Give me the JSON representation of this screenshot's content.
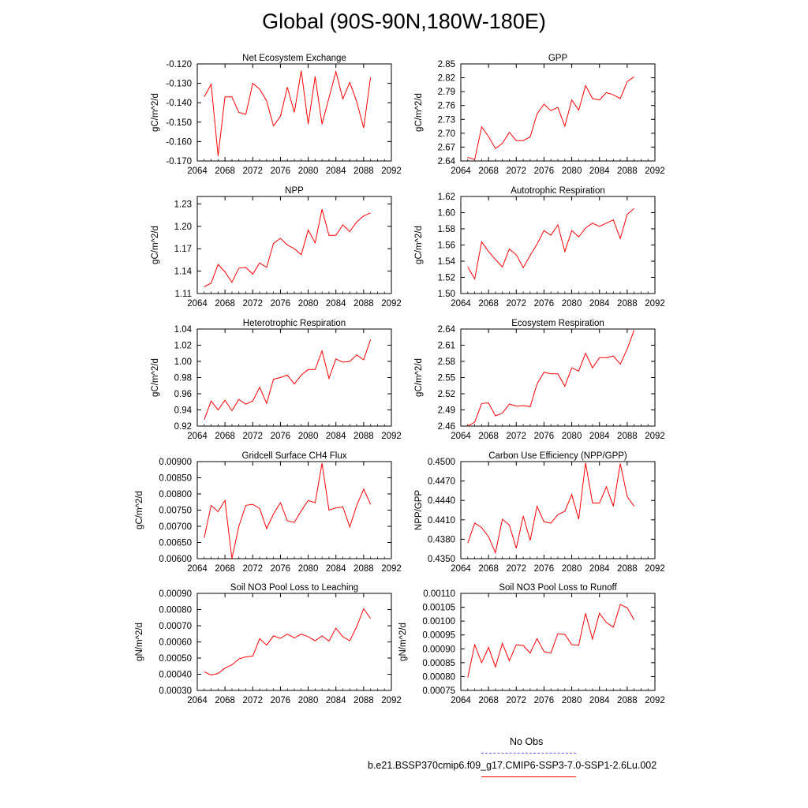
{
  "page": {
    "title": "Global (90S-90N,180W-180E)"
  },
  "legend": {
    "entries": [
      {
        "label": "No Obs",
        "color": "#5a5aff",
        "style": "dashed"
      },
      {
        "label": "b.e21.BSSP370cmip6.f09_g17.CMIP6-SSP3-7.0-SSP1-2.6Lu.002",
        "color": "#ff0000",
        "style": "solid"
      }
    ]
  },
  "chart_data": [
    {
      "type": "line",
      "title": "Net Ecosystem Exchange",
      "ylabel": "gC/m^2/d",
      "xlabel": "",
      "xlim": [
        2064,
        2092
      ],
      "xticks": [
        2064,
        2068,
        2072,
        2076,
        2080,
        2084,
        2088,
        2092
      ],
      "ylim": [
        -0.17,
        -0.12
      ],
      "yticks": [
        "-0.120",
        "-0.130",
        "-0.140",
        "-0.150",
        "-0.160",
        "-0.170"
      ],
      "series": [
        {
          "color": "#ff0000",
          "x": [
            2065,
            2066,
            2067,
            2068,
            2069,
            2070,
            2071,
            2072,
            2073,
            2074,
            2075,
            2076,
            2077,
            2078,
            2079,
            2080,
            2081,
            2082,
            2083,
            2084,
            2085,
            2086,
            2087,
            2088,
            2089
          ],
          "y": [
            -0.137,
            -0.1305,
            -0.1675,
            -0.137,
            -0.137,
            -0.145,
            -0.146,
            -0.13,
            -0.133,
            -0.139,
            -0.152,
            -0.147,
            -0.132,
            -0.145,
            -0.1235,
            -0.151,
            -0.1265,
            -0.151,
            -0.1375,
            -0.124,
            -0.138,
            -0.1295,
            -0.1395,
            -0.153,
            -0.127
          ]
        }
      ]
    },
    {
      "type": "line",
      "title": "GPP",
      "ylabel": "gC/m^2/d",
      "xlabel": "",
      "xlim": [
        2064,
        2092
      ],
      "xticks": [
        2064,
        2068,
        2072,
        2076,
        2080,
        2084,
        2088,
        2092
      ],
      "ylim": [
        2.64,
        2.85
      ],
      "yticks": [
        "2.85",
        "2.82",
        "2.79",
        "2.76",
        "2.73",
        "2.70",
        "2.67",
        "2.64"
      ],
      "series": [
        {
          "color": "#ff0000",
          "x": [
            2065,
            2066,
            2067,
            2068,
            2069,
            2070,
            2071,
            2072,
            2073,
            2074,
            2075,
            2076,
            2077,
            2078,
            2079,
            2080,
            2081,
            2082,
            2083,
            2084,
            2085,
            2086,
            2087,
            2088,
            2089
          ],
          "y": [
            2.648,
            2.643,
            2.714,
            2.693,
            2.667,
            2.678,
            2.702,
            2.684,
            2.684,
            2.692,
            2.742,
            2.763,
            2.749,
            2.756,
            2.715,
            2.772,
            2.75,
            2.803,
            2.775,
            2.772,
            2.788,
            2.783,
            2.775,
            2.812,
            2.822
          ]
        }
      ]
    },
    {
      "type": "line",
      "title": "NPP",
      "ylabel": "gC/m^2/d",
      "xlabel": "",
      "xlim": [
        2064,
        2092
      ],
      "xticks": [
        2064,
        2068,
        2072,
        2076,
        2080,
        2084,
        2088,
        2092
      ],
      "ylim": [
        1.11,
        1.24
      ],
      "yticks": [
        "1.23",
        "1.20",
        "1.17",
        "1.14",
        "1.11"
      ],
      "series": [
        {
          "color": "#ff0000",
          "x": [
            2065,
            2066,
            2067,
            2068,
            2069,
            2070,
            2071,
            2072,
            2073,
            2074,
            2075,
            2076,
            2077,
            2078,
            2079,
            2080,
            2081,
            2082,
            2083,
            2084,
            2085,
            2086,
            2087,
            2088,
            2089
          ],
          "y": [
            1.119,
            1.124,
            1.149,
            1.139,
            1.125,
            1.144,
            1.145,
            1.136,
            1.151,
            1.145,
            1.177,
            1.184,
            1.175,
            1.17,
            1.162,
            1.195,
            1.178,
            1.223,
            1.188,
            1.188,
            1.202,
            1.193,
            1.206,
            1.214,
            1.218
          ]
        }
      ]
    },
    {
      "type": "line",
      "title": "Autotrophic Respiration",
      "ylabel": "gC/m^2/d",
      "xlabel": "",
      "xlim": [
        2064,
        2092
      ],
      "xticks": [
        2064,
        2068,
        2072,
        2076,
        2080,
        2084,
        2088,
        2092
      ],
      "ylim": [
        1.5,
        1.62
      ],
      "yticks": [
        "1.62",
        "1.60",
        "1.58",
        "1.56",
        "1.54",
        "1.52",
        "1.50"
      ],
      "series": [
        {
          "color": "#ff0000",
          "x": [
            2065,
            2066,
            2067,
            2068,
            2069,
            2070,
            2071,
            2072,
            2073,
            2074,
            2075,
            2076,
            2077,
            2078,
            2079,
            2080,
            2081,
            2082,
            2083,
            2084,
            2085,
            2086,
            2087,
            2088,
            2089
          ],
          "y": [
            1.533,
            1.518,
            1.564,
            1.552,
            1.542,
            1.533,
            1.555,
            1.548,
            1.532,
            1.547,
            1.561,
            1.578,
            1.572,
            1.585,
            1.552,
            1.578,
            1.57,
            1.581,
            1.587,
            1.583,
            1.587,
            1.591,
            1.568,
            1.598,
            1.605
          ]
        }
      ]
    },
    {
      "type": "line",
      "title": "Heterotrophic Respiration",
      "ylabel": "gC/m^2/d",
      "xlabel": "",
      "xlim": [
        2064,
        2092
      ],
      "xticks": [
        2064,
        2068,
        2072,
        2076,
        2080,
        2084,
        2088,
        2092
      ],
      "ylim": [
        0.92,
        1.04
      ],
      "yticks": [
        "1.04",
        "1.02",
        "1.00",
        "0.98",
        "0.96",
        "0.94",
        "0.92"
      ],
      "series": [
        {
          "color": "#ff0000",
          "x": [
            2065,
            2066,
            2067,
            2068,
            2069,
            2070,
            2071,
            2072,
            2073,
            2074,
            2075,
            2076,
            2077,
            2078,
            2079,
            2080,
            2081,
            2082,
            2083,
            2084,
            2085,
            2086,
            2087,
            2088,
            2089
          ],
          "y": [
            0.928,
            0.951,
            0.94,
            0.952,
            0.939,
            0.953,
            0.947,
            0.951,
            0.968,
            0.948,
            0.978,
            0.98,
            0.983,
            0.972,
            0.983,
            0.99,
            0.99,
            1.013,
            0.979,
            1.003,
            0.999,
            1.0,
            1.008,
            1.002,
            1.027
          ]
        }
      ]
    },
    {
      "type": "line",
      "title": "Ecosystem Respiration",
      "ylabel": "gC/m^2/d",
      "xlabel": "",
      "xlim": [
        2064,
        2092
      ],
      "xticks": [
        2064,
        2068,
        2072,
        2076,
        2080,
        2084,
        2088,
        2092
      ],
      "ylim": [
        2.46,
        2.64
      ],
      "yticks": [
        "2.64",
        "2.61",
        "2.58",
        "2.55",
        "2.52",
        "2.49",
        "2.46"
      ],
      "series": [
        {
          "color": "#ff0000",
          "x": [
            2065,
            2066,
            2067,
            2068,
            2069,
            2070,
            2071,
            2072,
            2073,
            2074,
            2075,
            2076,
            2077,
            2078,
            2079,
            2080,
            2081,
            2082,
            2083,
            2084,
            2085,
            2086,
            2087,
            2088,
            2089
          ],
          "y": [
            2.46,
            2.467,
            2.502,
            2.503,
            2.479,
            2.484,
            2.501,
            2.497,
            2.498,
            2.496,
            2.538,
            2.56,
            2.557,
            2.557,
            2.534,
            2.568,
            2.562,
            2.595,
            2.568,
            2.587,
            2.587,
            2.59,
            2.575,
            2.603,
            2.638
          ]
        }
      ]
    },
    {
      "type": "line",
      "title": "Gridcell Surface CH4 Flux",
      "ylabel": "gC/m^2/d",
      "xlabel": "",
      "xlim": [
        2064,
        2092
      ],
      "xticks": [
        2064,
        2068,
        2072,
        2076,
        2080,
        2084,
        2088,
        2092
      ],
      "ylim": [
        0.006,
        0.009
      ],
      "yticks": [
        "0.00900",
        "0.00850",
        "0.00800",
        "0.00750",
        "0.00700",
        "0.00650",
        "0.00600"
      ],
      "series": [
        {
          "color": "#ff0000",
          "x": [
            2065,
            2066,
            2067,
            2068,
            2069,
            2070,
            2071,
            2072,
            2073,
            2074,
            2075,
            2076,
            2077,
            2078,
            2079,
            2080,
            2081,
            2082,
            2083,
            2084,
            2085,
            2086,
            2087,
            2088,
            2089
          ],
          "y": [
            0.00665,
            0.00765,
            0.00745,
            0.0078,
            0.006,
            0.007,
            0.00765,
            0.00768,
            0.00755,
            0.00693,
            0.00738,
            0.00773,
            0.00717,
            0.00712,
            0.00748,
            0.0078,
            0.00773,
            0.00895,
            0.0075,
            0.00757,
            0.0076,
            0.00698,
            0.00765,
            0.00815,
            0.00768
          ]
        }
      ]
    },
    {
      "type": "line",
      "title": "Carbon Use Efficiency (NPP/GPP)",
      "ylabel": "NPP/GPP",
      "xlabel": "",
      "xlim": [
        2064,
        2092
      ],
      "xticks": [
        2064,
        2068,
        2072,
        2076,
        2080,
        2084,
        2088,
        2092
      ],
      "ylim": [
        0.435,
        0.45
      ],
      "yticks": [
        "0.4500",
        "0.4470",
        "0.4440",
        "0.4410",
        "0.4380",
        "0.4350"
      ],
      "series": [
        {
          "color": "#ff0000",
          "x": [
            2065,
            2066,
            2067,
            2068,
            2069,
            2070,
            2071,
            2072,
            2073,
            2074,
            2075,
            2076,
            2077,
            2078,
            2079,
            2080,
            2081,
            2082,
            2083,
            2084,
            2085,
            2086,
            2087,
            2088,
            2089
          ],
          "y": [
            0.4374,
            0.4405,
            0.4398,
            0.4384,
            0.4359,
            0.4411,
            0.4402,
            0.4366,
            0.4416,
            0.4378,
            0.4431,
            0.4407,
            0.4405,
            0.4418,
            0.4423,
            0.4449,
            0.4411,
            0.4498,
            0.4436,
            0.4436,
            0.4461,
            0.4431,
            0.4497,
            0.4446,
            0.4431
          ]
        }
      ]
    },
    {
      "type": "line",
      "title": "Soil NO3 Pool Loss to Leaching",
      "ylabel": "gN/m^2/d",
      "xlabel": "",
      "xlim": [
        2064,
        2092
      ],
      "xticks": [
        2064,
        2068,
        2072,
        2076,
        2080,
        2084,
        2088,
        2092
      ],
      "ylim": [
        0.0003,
        0.0009
      ],
      "yticks": [
        "0.00090",
        "0.00080",
        "0.00070",
        "0.00060",
        "0.00050",
        "0.00040",
        "0.00030"
      ],
      "series": [
        {
          "color": "#ff0000",
          "x": [
            2065,
            2066,
            2067,
            2068,
            2069,
            2070,
            2071,
            2072,
            2073,
            2074,
            2075,
            2076,
            2077,
            2078,
            2079,
            2080,
            2081,
            2082,
            2083,
            2084,
            2085,
            2086,
            2087,
            2088,
            2089
          ],
          "y": [
            0.000415,
            0.000395,
            0.000405,
            0.000438,
            0.000458,
            0.000494,
            0.000508,
            0.000512,
            0.00062,
            0.00058,
            0.000637,
            0.000622,
            0.000648,
            0.000625,
            0.000648,
            0.000632,
            0.000607,
            0.000637,
            0.000605,
            0.000685,
            0.000632,
            0.000607,
            0.000695,
            0.000805,
            0.000745
          ]
        }
      ]
    },
    {
      "type": "line",
      "title": "Soil NO3 Pool Loss to Runoff",
      "ylabel": "gN/m^2/d",
      "xlabel": "",
      "xlim": [
        2064,
        2092
      ],
      "xticks": [
        2064,
        2068,
        2072,
        2076,
        2080,
        2084,
        2088,
        2092
      ],
      "ylim": [
        0.00075,
        0.0011
      ],
      "yticks": [
        "0.00110",
        "0.00105",
        "0.00100",
        "0.00095",
        "0.00090",
        "0.00085",
        "0.00080",
        "0.00075"
      ],
      "series": [
        {
          "color": "#ff0000",
          "x": [
            2065,
            2066,
            2067,
            2068,
            2069,
            2070,
            2071,
            2072,
            2073,
            2074,
            2075,
            2076,
            2077,
            2078,
            2079,
            2080,
            2081,
            2082,
            2083,
            2084,
            2085,
            2086,
            2087,
            2088,
            2089
          ],
          "y": [
            0.000797,
            0.000915,
            0.00085,
            0.000905,
            0.000835,
            0.00092,
            0.000857,
            0.000915,
            0.000912,
            0.000885,
            0.000937,
            0.00089,
            0.000885,
            0.000955,
            0.000952,
            0.000915,
            0.000913,
            0.001028,
            0.000935,
            0.001028,
            0.000995,
            0.000978,
            0.00106,
            0.001048,
            0.001005
          ]
        }
      ]
    }
  ]
}
